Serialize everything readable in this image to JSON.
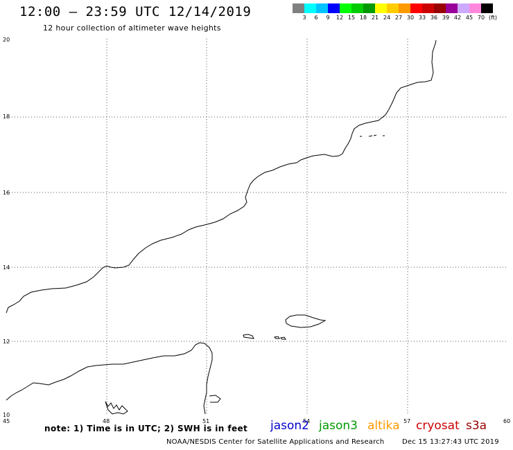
{
  "header": {
    "title": "12:00 — 23:59 UTC 12/14/2019",
    "subtitle": "12 hour collection of altimeter wave heights"
  },
  "legend": {
    "colors": [
      "#808080",
      "#00ffff",
      "#00c4ff",
      "#0000ff",
      "#00ff00",
      "#00cc00",
      "#009900",
      "#ffff00",
      "#ffcc00",
      "#ff9900",
      "#ff0000",
      "#cc0000",
      "#990000",
      "#990099",
      "#ccaaff",
      "#ff88dd",
      "#000000"
    ],
    "labels": [
      "3",
      "6",
      "9",
      "12",
      "15",
      "18",
      "21",
      "24",
      "27",
      "30",
      "33",
      "36",
      "39",
      "42",
      "45",
      "70",
      "(ft)"
    ]
  },
  "axes": {
    "x_ticks": [
      "45",
      "48",
      "51",
      "54",
      "57",
      "60"
    ],
    "y_ticks": [
      "20",
      "18",
      "16",
      "14",
      "12",
      "10"
    ]
  },
  "footer": {
    "note": "note:  1) Time is in UTC;  2) SWH is in feet",
    "satellites": [
      {
        "name": "jason2",
        "color": "#0000cc"
      },
      {
        "name": "jason3",
        "color": "#009900"
      },
      {
        "name": "altika",
        "color": "#ff9900"
      },
      {
        "name": "cryosat",
        "color": "#cc0000"
      },
      {
        "name": "s3a",
        "color": "#990000"
      }
    ],
    "credit": "NOAA/NESDIS Center for Satellite Applications and Research",
    "timestamp": "Dec 15 13:27:43 UTC 2019"
  }
}
